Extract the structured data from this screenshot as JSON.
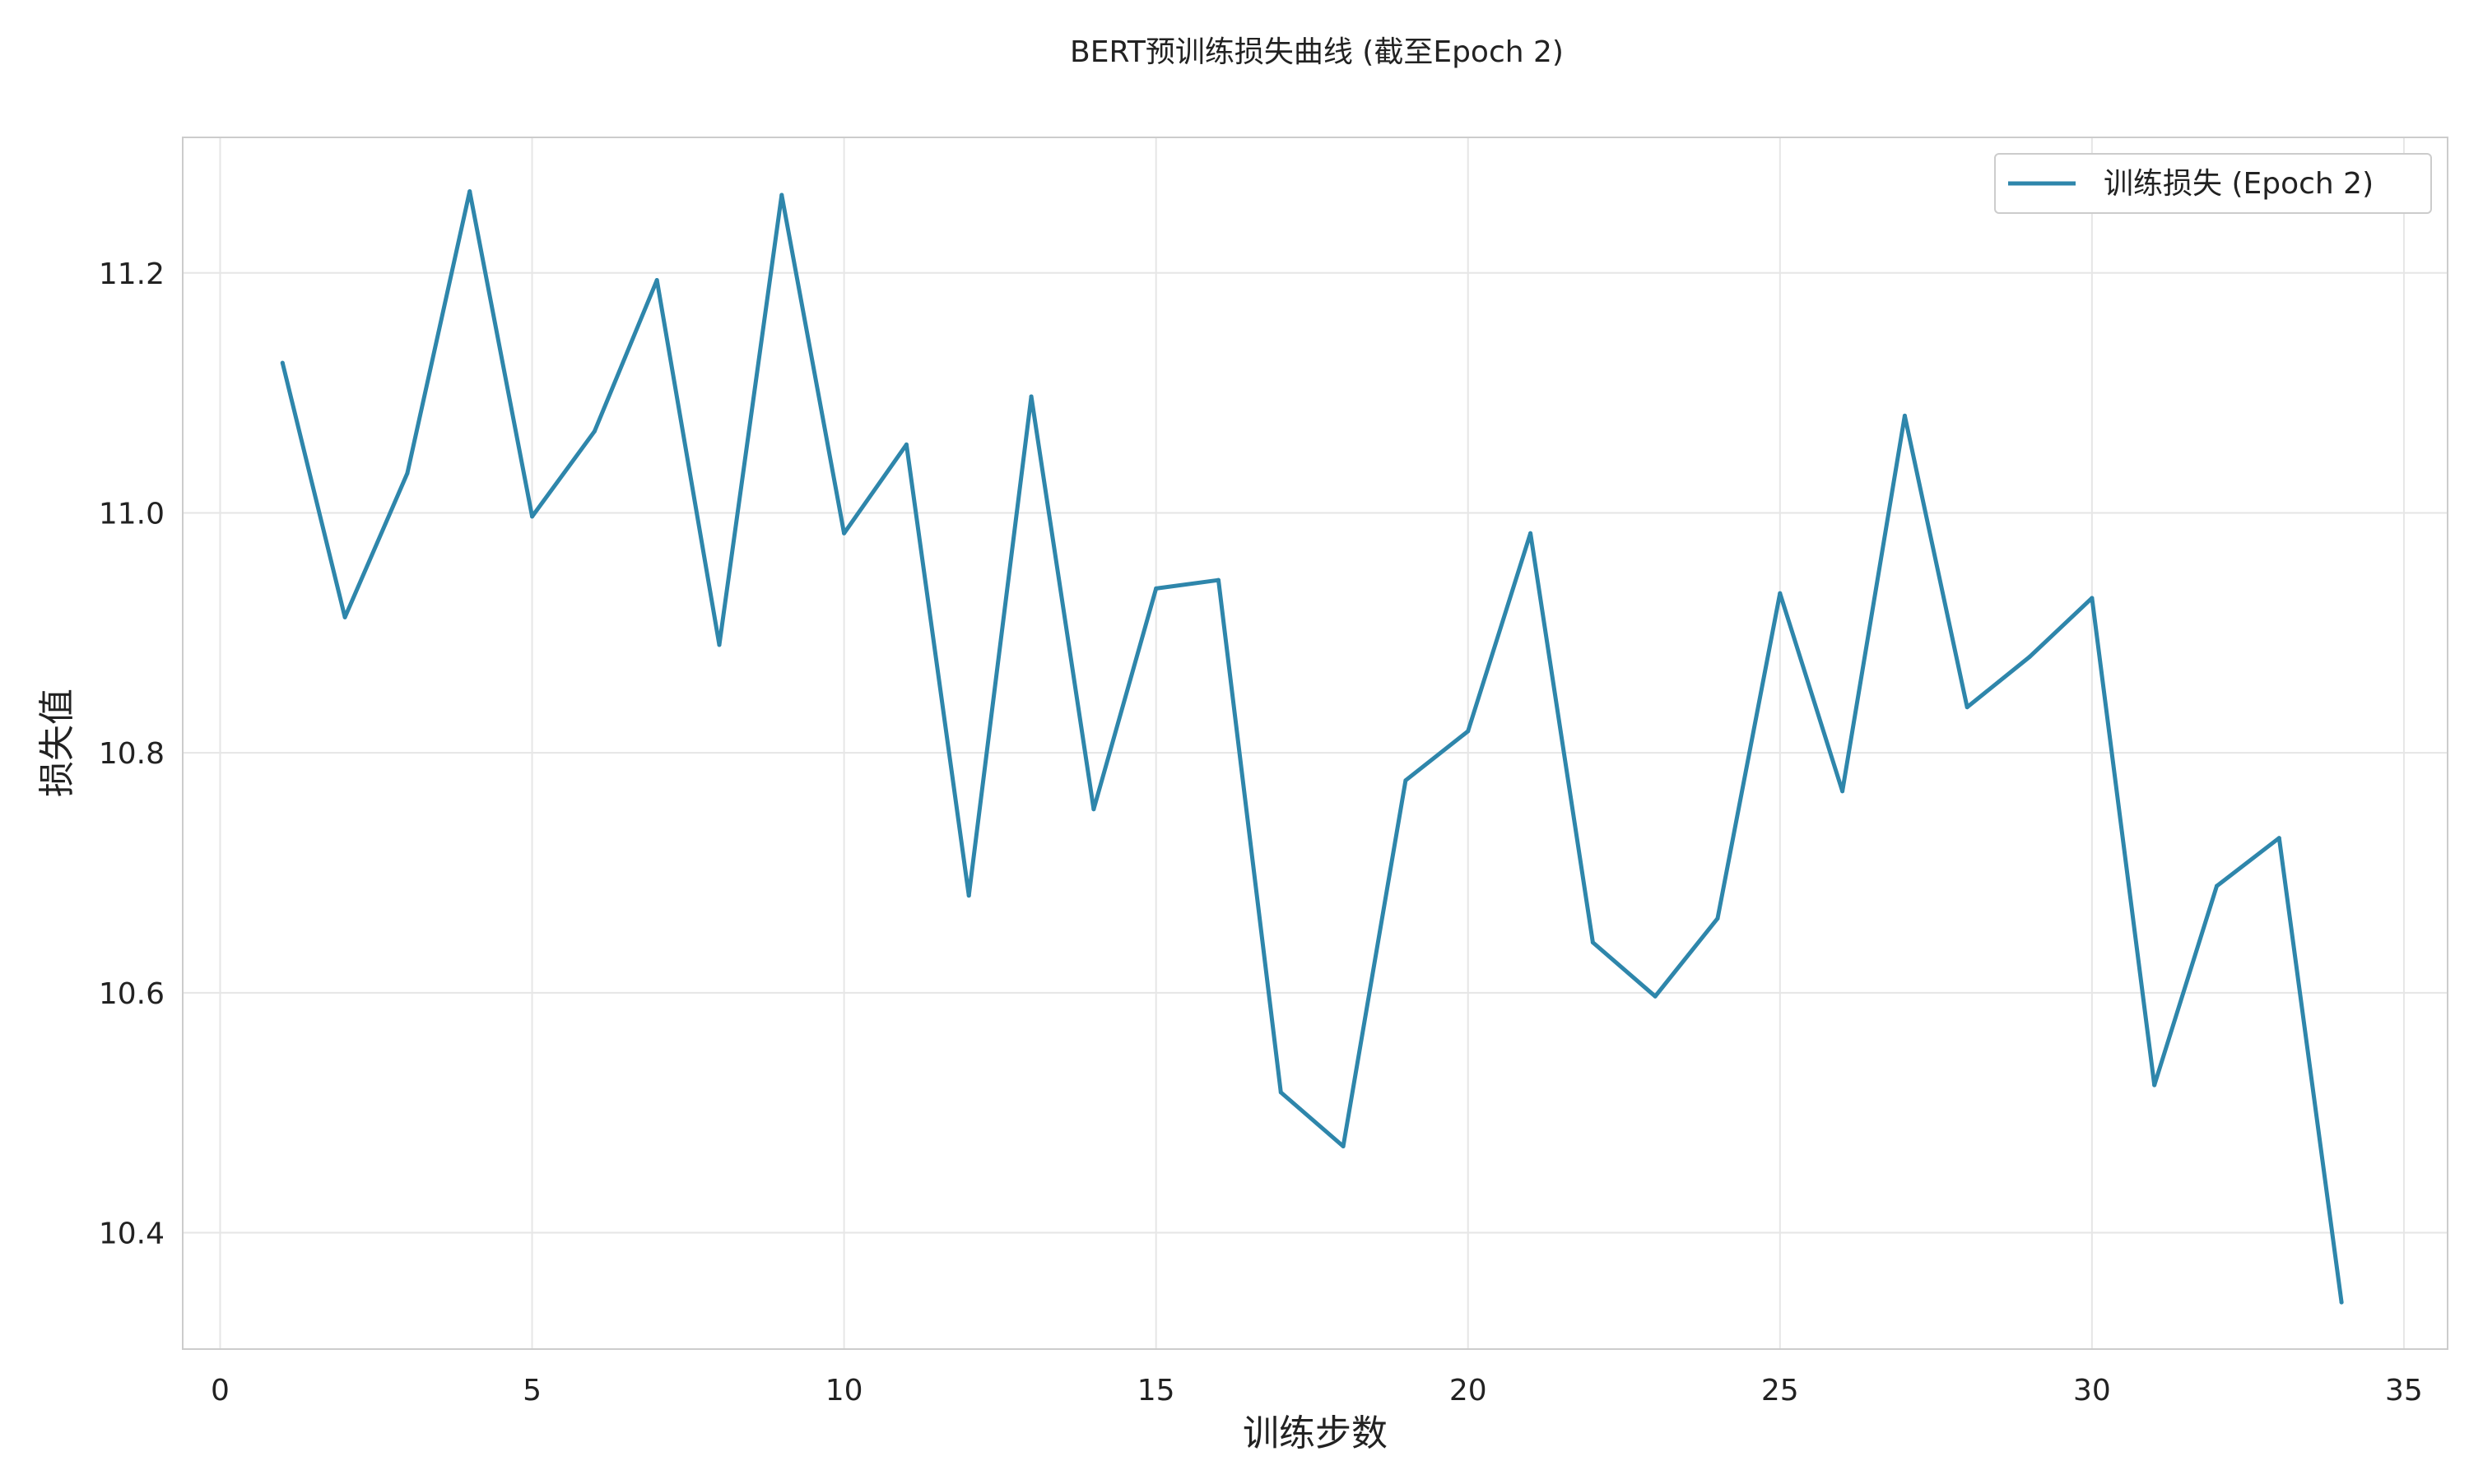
{
  "chart_data": {
    "type": "line",
    "title": "BERT预训练损失曲线 (截至Epoch 2)",
    "xlabel": "训练步数",
    "ylabel": "损失值",
    "xlim": [
      -0.6,
      35.7
    ],
    "ylim": [
      10.303,
      11.313
    ],
    "xticks": [
      0,
      5,
      10,
      15,
      20,
      25,
      30,
      35
    ],
    "yticks": [
      10.4,
      10.6,
      10.8,
      11.0,
      11.2
    ],
    "xtick_labels": [
      "0",
      "5",
      "10",
      "15",
      "20",
      "25",
      "30",
      "35"
    ],
    "ytick_labels": [
      "10.4",
      "10.6",
      "10.8",
      "11.0",
      "11.2"
    ],
    "grid": true,
    "legend_position": "top-right",
    "colors": {
      "series": "#2e86ab",
      "grid": "#e6e6e6",
      "axes": "#cccccc",
      "text": "#222222"
    },
    "x": [
      1,
      2,
      3,
      4,
      5,
      6,
      7,
      8,
      9,
      10,
      11,
      12,
      13,
      14,
      15,
      16,
      17,
      18,
      19,
      20,
      21,
      22,
      23,
      24,
      25,
      26,
      27,
      28,
      29,
      30,
      31,
      32,
      33,
      34
    ],
    "series": [
      {
        "name": "训练损失 (Epoch 2)",
        "values": [
          11.125,
          10.913,
          11.033,
          11.268,
          10.997,
          11.068,
          11.194,
          10.89,
          11.265,
          10.983,
          11.057,
          10.681,
          11.097,
          10.753,
          10.937,
          10.944,
          10.517,
          10.472,
          10.777,
          10.818,
          10.983,
          10.642,
          10.597,
          10.662,
          10.933,
          10.768,
          11.081,
          10.838,
          10.88,
          10.929,
          10.523,
          10.689,
          10.729,
          10.342
        ]
      }
    ]
  }
}
